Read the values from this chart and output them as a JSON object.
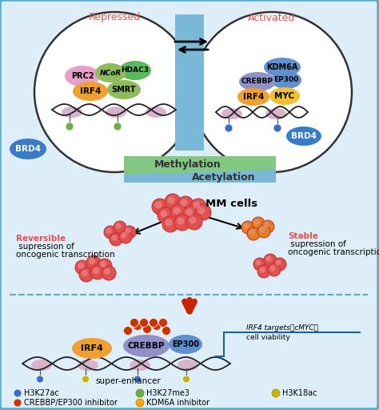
{
  "bg_color": "#ddeef8",
  "border_color": "#5aabcd",
  "repressed_label": "Repressed",
  "activated_label": "Activated",
  "repressed_color": "#e05050",
  "activated_color": "#e05050",
  "methylation_label": "Methylation",
  "acetylation_label": "Acetylation",
  "mm_cells_label": "MM cells",
  "reversible_label": "Reversible",
  "stable_label": "Stable",
  "super_enhancer_label": "super-enhancer",
  "legend_items": [
    {
      "label": "H3K27ac",
      "color": "#3a6ec8"
    },
    {
      "label": "H3K27me3",
      "color": "#70ad47"
    },
    {
      "label": "H3K18ac",
      "color": "#c8b400"
    },
    {
      "label": "CREBBP/EP300 inhibitor",
      "color": "#cc3300"
    },
    {
      "label": "KDM6A inhibitor",
      "color": "#ffa500"
    }
  ]
}
